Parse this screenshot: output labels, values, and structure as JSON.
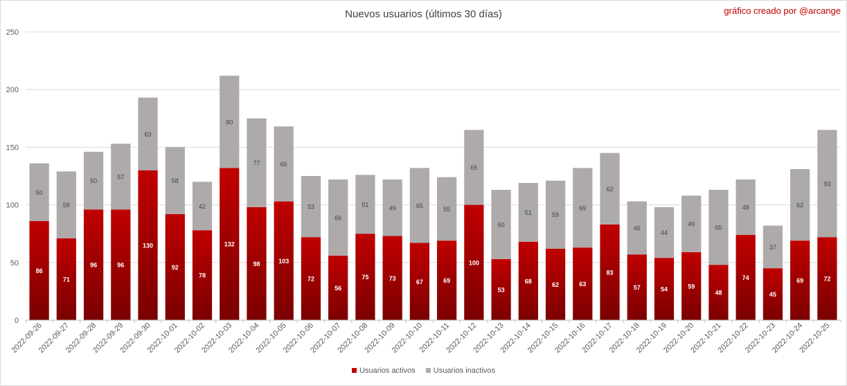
{
  "credit": "gráfico creado por @arcange",
  "colors": {
    "active": "#c00000",
    "active_dark": "#7a0000",
    "inactive": "#aeaaaa",
    "grid": "#d9d9d9",
    "text": "#404040"
  },
  "chart_data": {
    "type": "bar",
    "stacked": true,
    "title": "Nuevos usuarios (últimos 30 días)",
    "xlabel": "",
    "ylabel": "",
    "ylim": [
      0,
      250
    ],
    "yticks": [
      0,
      50,
      100,
      150,
      200,
      250
    ],
    "grid": true,
    "legend": "bottom",
    "categories": [
      "2022-09-26",
      "2022-09-27",
      "2022-09-28",
      "2022-09-29",
      "2022-09-30",
      "2022-10-01",
      "2022-10-02",
      "2022-10-03",
      "2022-10-04",
      "2022-10-05",
      "2022-10-06",
      "2022-10-07",
      "2022-10-08",
      "2022-10-09",
      "2022-10-10",
      "2022-10-11",
      "2022-10-12",
      "2022-10-13",
      "2022-10-14",
      "2022-10-15",
      "2022-10-16",
      "2022-10-17",
      "2022-10-18",
      "2022-10-19",
      "2022-10-20",
      "2022-10-21",
      "2022-10-22",
      "2022-10-23",
      "2022-10-24",
      "2022-10-25"
    ],
    "series": [
      {
        "name": "Usuarios activos",
        "values": [
          86,
          71,
          96,
          96,
          130,
          92,
          78,
          132,
          98,
          103,
          72,
          56,
          75,
          73,
          67,
          69,
          100,
          53,
          68,
          62,
          63,
          83,
          57,
          54,
          59,
          48,
          74,
          45,
          69,
          72
        ]
      },
      {
        "name": "Usuarios inactivos",
        "values": [
          50,
          58,
          50,
          57,
          63,
          58,
          42,
          80,
          77,
          65,
          53,
          66,
          51,
          49,
          65,
          55,
          65,
          60,
          51,
          59,
          69,
          62,
          46,
          44,
          49,
          65,
          48,
          37,
          62,
          93
        ]
      }
    ]
  }
}
